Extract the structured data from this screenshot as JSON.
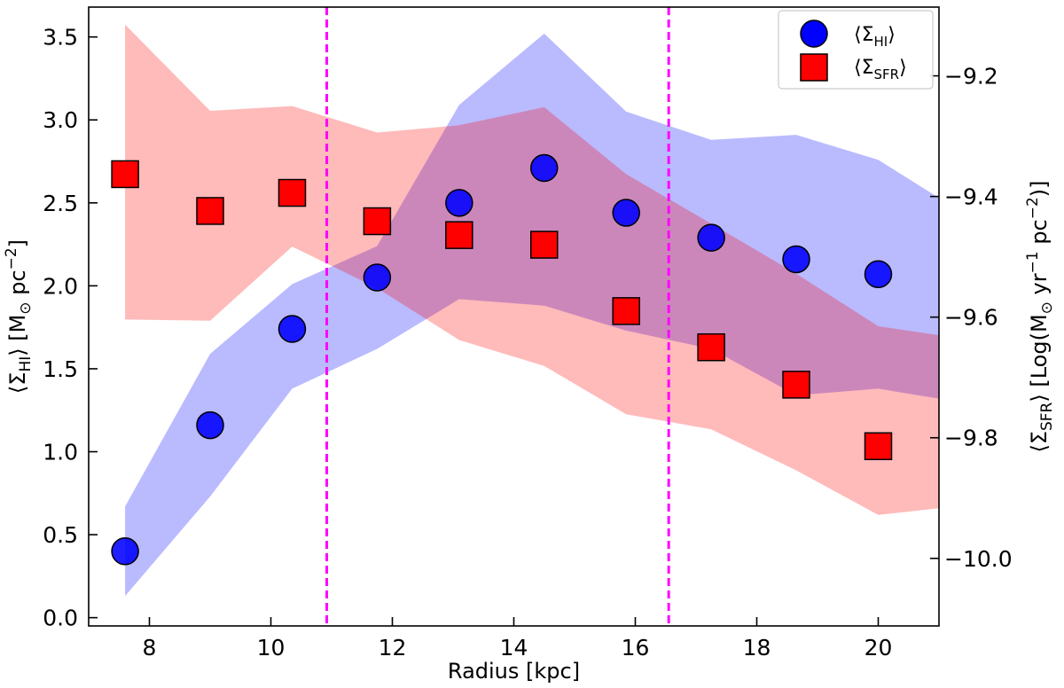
{
  "chart_data": {
    "type": "scatter",
    "xlabel": "Radius [kpc]",
    "ylabel_left": {
      "main": "⟨Σ",
      "sub": "HI",
      "rest": "⟩ [M",
      "sun": "⊙",
      "rest2": " pc",
      "sup": "−2",
      "rest3": "]"
    },
    "ylabel_right": {
      "main": "⟨Σ",
      "sub": "SFR",
      "rest": "⟩ [Log(M",
      "sun": "⊙",
      "rest2": " yr",
      "sup1": "−1",
      "rest3": " pc",
      "sup2": "−2",
      "rest4": ")]"
    },
    "xlim": [
      7.0,
      21.0
    ],
    "ylim_left": [
      -0.05,
      3.68
    ],
    "ylim_right": [
      -10.112,
      -9.086
    ],
    "x_ticks": [
      8,
      10,
      12,
      14,
      16,
      18,
      20
    ],
    "x_tick_labels": [
      "8",
      "10",
      "12",
      "14",
      "16",
      "18",
      "20"
    ],
    "y_left_ticks": [
      0.0,
      0.5,
      1.0,
      1.5,
      2.0,
      2.5,
      3.0,
      3.5
    ],
    "y_left_tick_labels": [
      "0.0",
      "0.5",
      "1.0",
      "1.5",
      "2.0",
      "2.5",
      "3.0",
      "3.5"
    ],
    "y_right_ticks": [
      -10.0,
      -9.8,
      -9.6,
      -9.4,
      -9.2
    ],
    "y_right_tick_labels": [
      "−10.0",
      "−9.8",
      "−9.6",
      "−9.4",
      "−9.2"
    ],
    "vlines": [
      10.92,
      16.55
    ],
    "vline_color": "#ff00ff",
    "legend_position": "top-right",
    "legend": [
      {
        "marker": "circle",
        "color": "#0000ff",
        "label_main": "⟨Σ",
        "label_sub": "HI",
        "label_end": "⟩"
      },
      {
        "marker": "square",
        "color": "#ff0000",
        "label_main": "⟨Σ",
        "label_sub": "SFR",
        "label_end": "⟩"
      }
    ],
    "series": [
      {
        "axis": "left",
        "marker": "circle",
        "color": "#0000ff",
        "x": [
          7.6,
          9.0,
          10.35,
          11.75,
          13.1,
          14.5,
          15.85,
          17.25,
          18.65,
          20.0
        ],
        "y": [
          0.4,
          1.16,
          1.74,
          2.05,
          2.5,
          2.71,
          2.44,
          2.29,
          2.16,
          2.07
        ],
        "band_color": "#0000ff",
        "band_opacity": 0.27,
        "band_x": [
          7.6,
          9.0,
          10.35,
          11.75,
          13.1,
          14.5,
          15.85,
          17.25,
          18.65,
          20.0,
          21.0
        ],
        "band_upper": [
          0.67,
          1.59,
          2.01,
          2.24,
          3.09,
          3.52,
          3.05,
          2.88,
          2.91,
          2.76,
          2.53
        ],
        "band_lower": [
          0.13,
          0.73,
          1.38,
          1.62,
          1.92,
          1.88,
          1.73,
          1.62,
          1.34,
          1.38,
          1.32
        ]
      },
      {
        "axis": "right",
        "marker": "square",
        "color": "#ff0000",
        "x": [
          7.6,
          9.0,
          10.35,
          11.75,
          13.1,
          14.5,
          15.85,
          17.25,
          18.65,
          20.0
        ],
        "y": [
          -9.363,
          -9.424,
          -9.394,
          -9.441,
          -9.464,
          -9.48,
          -9.59,
          -9.65,
          -9.712,
          -9.814
        ],
        "band_color": "#ff0000",
        "band_opacity": 0.27,
        "band_x": [
          7.6,
          9.0,
          10.35,
          11.75,
          13.1,
          14.5,
          15.85,
          17.25,
          18.65,
          20.0,
          21.0
        ],
        "band_upper": [
          -9.115,
          -9.258,
          -9.25,
          -9.294,
          -9.282,
          -9.252,
          -9.363,
          -9.445,
          -9.528,
          -9.615,
          -9.63
        ],
        "band_lower": [
          -9.604,
          -9.606,
          -9.483,
          -9.552,
          -9.638,
          -9.681,
          -9.761,
          -9.786,
          -9.854,
          -9.928,
          -9.917
        ]
      }
    ]
  }
}
